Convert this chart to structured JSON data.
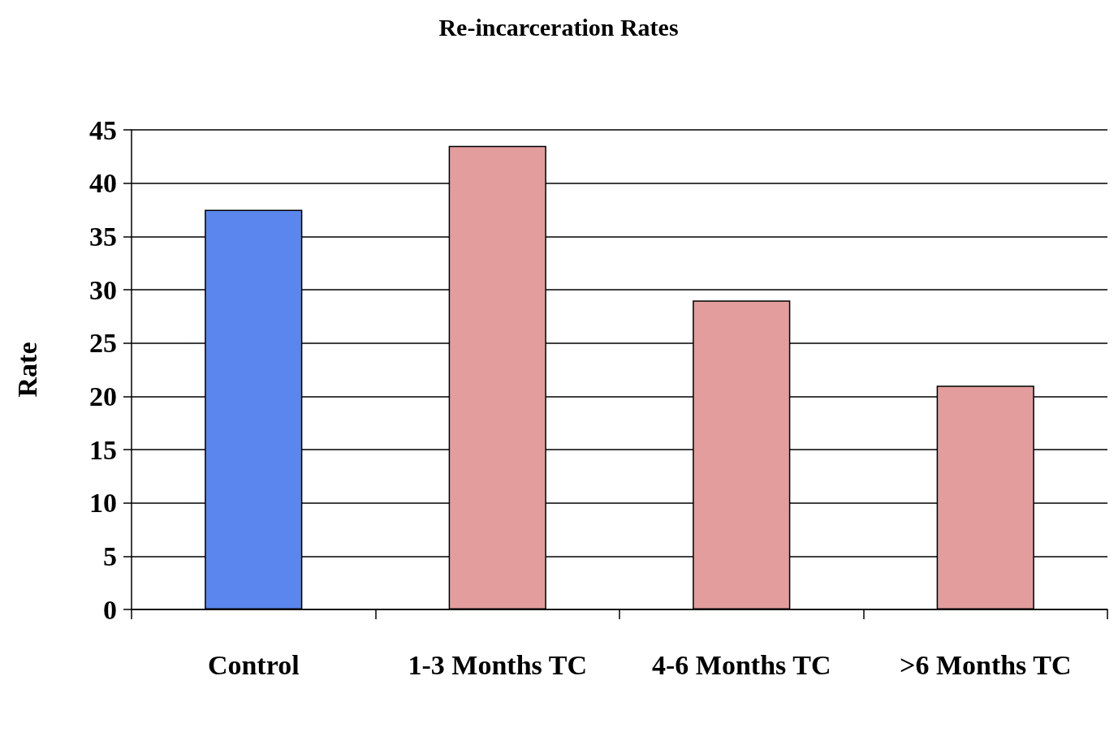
{
  "chart_data": {
    "type": "bar",
    "title": "Re-incarceration Rates",
    "ylabel": "Rate",
    "categories": [
      "Control",
      "1-3 Months TC",
      "4-6 Months TC",
      ">6 Months TC"
    ],
    "values": [
      37.5,
      43.5,
      29,
      21
    ],
    "colors": [
      "#5b86ee",
      "#e39d9d",
      "#e39d9d",
      "#e39d9d"
    ],
    "ylim": [
      0,
      45
    ],
    "yticks": [
      0,
      5,
      10,
      15,
      20,
      25,
      30,
      35,
      40,
      45
    ],
    "grid": "y"
  }
}
